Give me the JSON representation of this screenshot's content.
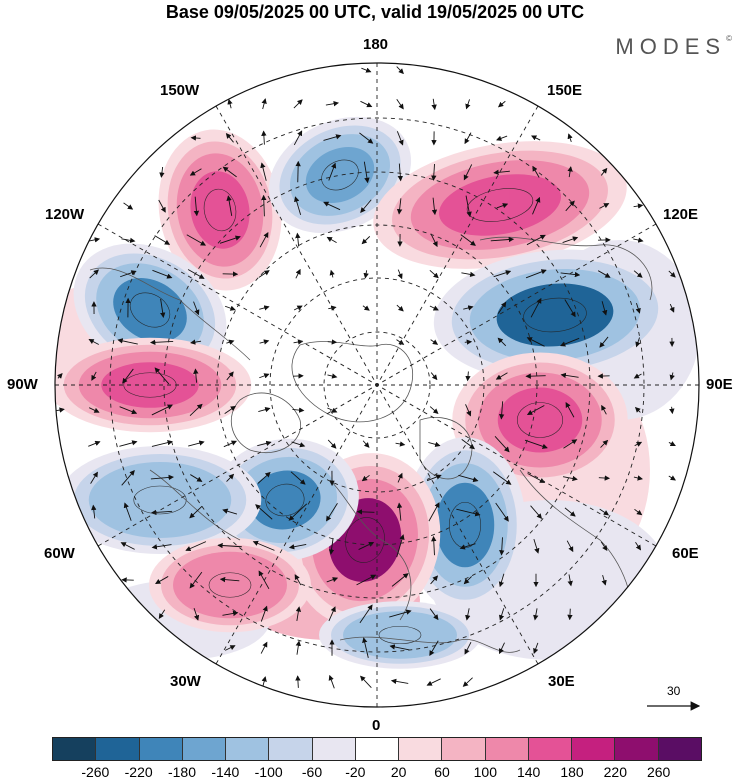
{
  "title": "Base 09/05/2025 00 UTC, valid 19/05/2025 00 UTC",
  "brand": "MODES",
  "brand_mark": "©",
  "longitude_labels": {
    "top": "180",
    "top_right": "150E",
    "top_left": "150W",
    "upper_right": "120E",
    "upper_left": "120W",
    "right": "90E",
    "left": "90W",
    "lower_right": "60E",
    "lower_left": "60W",
    "bottom_right": "30E",
    "bottom_left": "30W",
    "bottom": "0"
  },
  "reference_vector": {
    "label": "30"
  },
  "colorbar": {
    "ticks": [
      "-260",
      "-220",
      "-180",
      "-140",
      "-100",
      "-60",
      "-20",
      "20",
      "60",
      "100",
      "140",
      "180",
      "220",
      "260"
    ],
    "colors": [
      "#15405e",
      "#1f6497",
      "#3f85b9",
      "#6ea5d0",
      "#9fc2e1",
      "#c6d4ea",
      "#e8e6f1",
      "#ffffff",
      "#f9dbe0",
      "#f4b4c3",
      "#ee88aa",
      "#e45296",
      "#c5207f",
      "#8e0e6e",
      "#5a0d64"
    ]
  },
  "anomalies": [
    {
      "name": "pos-150W",
      "color": "#e45296"
    },
    {
      "name": "neg-120W",
      "color": "#3f85b9"
    },
    {
      "name": "pos-90W",
      "color": "#e45296"
    },
    {
      "name": "neg-165W",
      "color": "#6ea5d0"
    },
    {
      "name": "pos-140E",
      "color": "#e45296"
    },
    {
      "name": "neg-110E",
      "color": "#1f6497"
    },
    {
      "name": "pos-80E",
      "color": "#e45296"
    },
    {
      "name": "neg-40E",
      "color": "#3f85b9"
    },
    {
      "name": "pos-10W",
      "color": "#8e0e6e"
    },
    {
      "name": "neg-50W",
      "color": "#3f85b9"
    },
    {
      "name": "neg-70W",
      "color": "#9fc2e1"
    },
    {
      "name": "pos-40W",
      "color": "#ee88aa"
    },
    {
      "name": "neg-10E",
      "color": "#9fc2e1"
    }
  ]
}
